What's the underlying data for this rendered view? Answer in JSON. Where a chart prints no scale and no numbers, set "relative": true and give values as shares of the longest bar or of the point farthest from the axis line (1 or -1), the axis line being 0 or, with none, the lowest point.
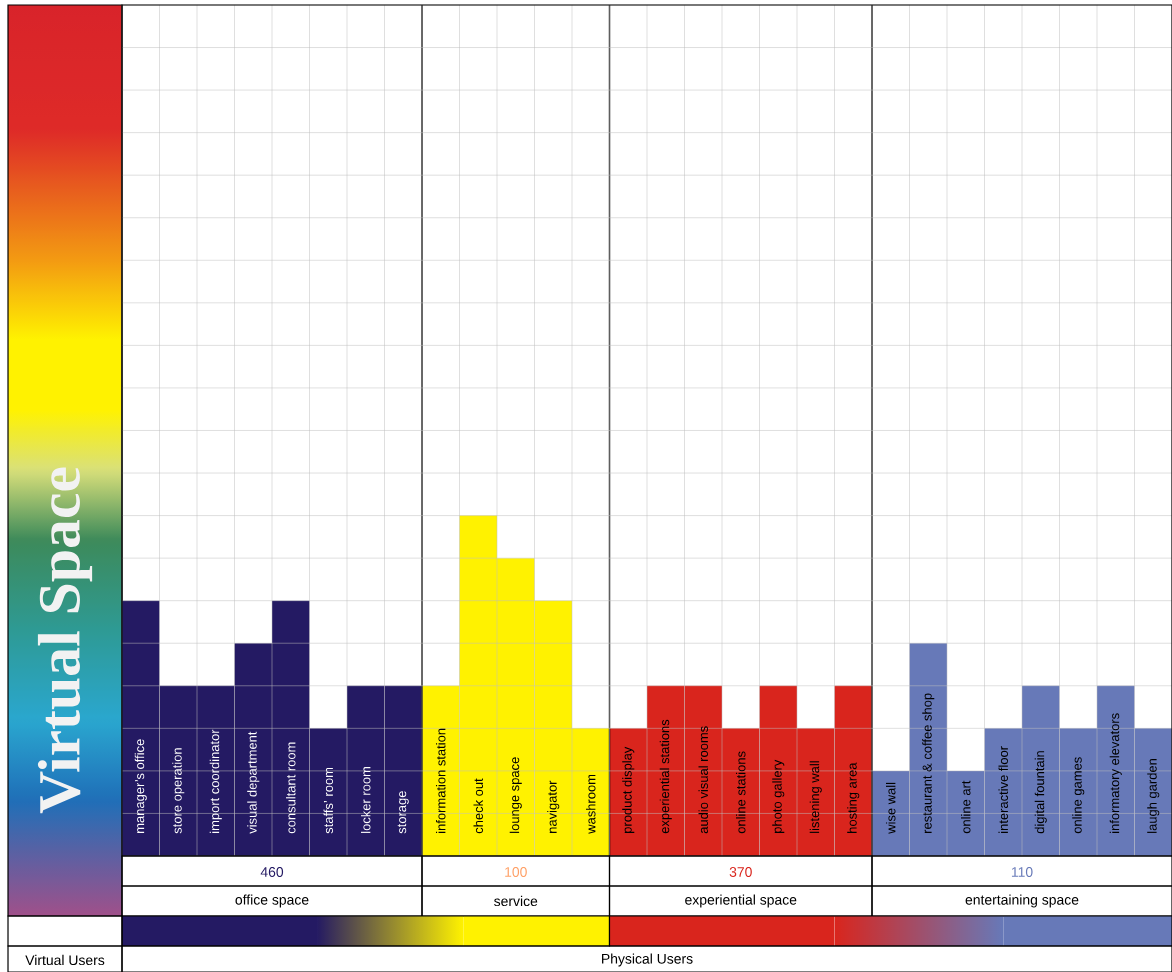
{
  "chart_data": {
    "type": "bar",
    "ylabel": "Virtual Space",
    "relative": true,
    "grid": true,
    "categories": [
      "manager’s office",
      "store operation",
      "import coordinator",
      "visual department",
      "consultant room",
      "staffs’ room",
      "locker room",
      "storage",
      "information station",
      "check out",
      "lounge space",
      "navigator",
      "washroom",
      "product display",
      "experiential stations",
      "audio visual rooms",
      "online stations",
      "photo gallery",
      "listening wall",
      "hosting area",
      "wise wall",
      "restaurant & coffee shop",
      "online art",
      "interactive floor",
      "digital fountain",
      "online games",
      "informatory elevators",
      "laugh garden"
    ],
    "values": [
      0.75,
      0.5,
      0.5,
      0.625,
      0.75,
      0.375,
      0.5,
      0.5,
      0.5,
      1,
      0.875,
      0.75,
      0.375,
      0.375,
      0.5,
      0.5,
      0.375,
      0.5,
      0.375,
      0.5,
      0.25,
      0.625,
      0.25,
      0.375,
      0.5,
      0.375,
      0.5,
      0.375
    ],
    "colors": [
      "#241a63",
      "#241a63",
      "#241a63",
      "#241a63",
      "#241a63",
      "#241a63",
      "#241a63",
      "#241a63",
      "#fff200",
      "#fff200",
      "#fff200",
      "#fff200",
      "#fff200",
      "#d9251d",
      "#d9251d",
      "#d9251d",
      "#d9251d",
      "#d9251d",
      "#d9251d",
      "#d9251d",
      "#6779b8",
      "#6779b8",
      "#6779b8",
      "#6779b8",
      "#6779b8",
      "#6779b8",
      "#6779b8",
      "#6779b8"
    ],
    "annotations": [
      "460",
      "office space",
      "100",
      "service",
      "370",
      "experiential space",
      "110",
      "entertaining space",
      "Virtual Users",
      "Physical Users"
    ]
  }
}
